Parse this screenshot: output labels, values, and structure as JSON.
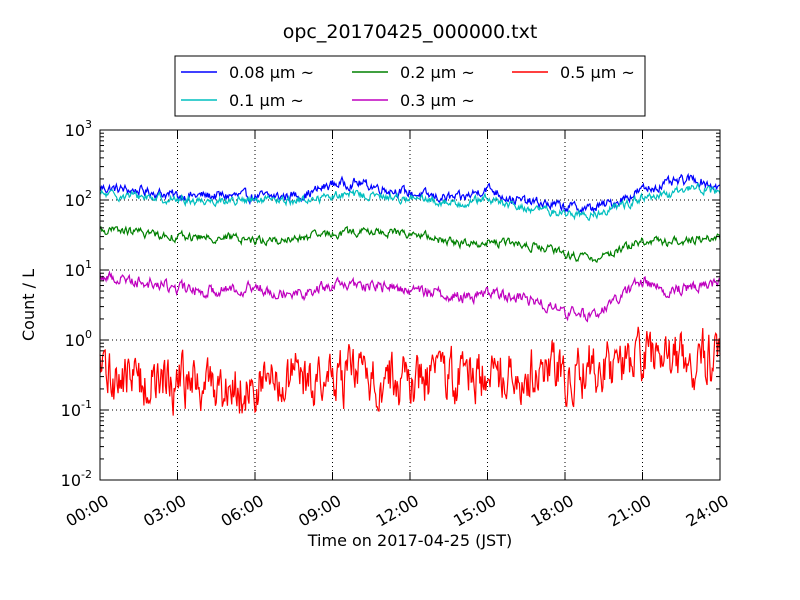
{
  "chart_data": {
    "type": "line",
    "title": "opc_20170425_000000.txt",
    "xlabel": "Time on 2017-04-25 (JST)",
    "ylabel": "Count / L",
    "x_ticks": [
      "00:00",
      "03:00",
      "06:00",
      "09:00",
      "12:00",
      "15:00",
      "18:00",
      "21:00",
      "24:00"
    ],
    "xlim_hours": [
      0,
      24
    ],
    "y_scale": "log",
    "ylim": [
      0.01,
      1000
    ],
    "y_ticks": [
      {
        "base": "10",
        "exp": "-2"
      },
      {
        "base": "10",
        "exp": "-1"
      },
      {
        "base": "10",
        "exp": "0"
      },
      {
        "base": "10",
        "exp": "1"
      },
      {
        "base": "10",
        "exp": "2"
      },
      {
        "base": "10",
        "exp": "3"
      }
    ],
    "grid": true,
    "legend_position": "top",
    "series": [
      {
        "name": "0.08 μm ~",
        "color": "#0000ff",
        "x": [
          0,
          1,
          2,
          3,
          4,
          5,
          6,
          7,
          8,
          9,
          10,
          11,
          12,
          13,
          14,
          15,
          16,
          17,
          18,
          19,
          20,
          21,
          22,
          23,
          24
        ],
        "y": [
          150,
          140,
          130,
          115,
          115,
          115,
          112,
          112,
          120,
          170,
          175,
          145,
          125,
          110,
          105,
          150,
          100,
          90,
          80,
          75,
          95,
          140,
          170,
          200,
          150
        ]
      },
      {
        "name": "0.1 μm ~",
        "color": "#00bfbf",
        "x": [
          0,
          1,
          2,
          3,
          4,
          5,
          6,
          7,
          8,
          9,
          10,
          11,
          12,
          13,
          14,
          15,
          16,
          17,
          18,
          19,
          20,
          21,
          22,
          23,
          24
        ],
        "y": [
          120,
          115,
          110,
          100,
          98,
          98,
          97,
          97,
          100,
          115,
          120,
          110,
          105,
          95,
          90,
          105,
          80,
          72,
          65,
          60,
          80,
          105,
          115,
          160,
          120
        ]
      },
      {
        "name": "0.2 μm ~",
        "color": "#008000",
        "x": [
          0,
          1,
          2,
          3,
          4,
          5,
          6,
          7,
          8,
          9,
          10,
          11,
          12,
          13,
          14,
          15,
          16,
          17,
          18,
          19,
          20,
          21,
          22,
          23,
          24
        ],
        "y": [
          37,
          36,
          33,
          30,
          29,
          29,
          27,
          26,
          29,
          33,
          35,
          35,
          33,
          28,
          24,
          25,
          24,
          21,
          17,
          14,
          19,
          26,
          25,
          28,
          28
        ]
      },
      {
        "name": "0.3 μm ~",
        "color": "#bf00bf",
        "x": [
          0,
          1,
          2,
          3,
          4,
          5,
          6,
          7,
          8,
          9,
          10,
          11,
          12,
          13,
          14,
          15,
          16,
          17,
          18,
          19,
          20,
          21,
          22,
          23,
          24
        ],
        "y": [
          8,
          7.5,
          6.5,
          5.5,
          5,
          5.5,
          5.5,
          5,
          4.8,
          6,
          6,
          5.8,
          5.2,
          4.8,
          4,
          4.8,
          4.2,
          3.5,
          2.5,
          2.2,
          3.8,
          7,
          5,
          6,
          7
        ]
      },
      {
        "name": "0.5 μm ~",
        "color": "#ff0000",
        "x": [
          0,
          1,
          2,
          3,
          4,
          5,
          6,
          7,
          8,
          9,
          10,
          11,
          12,
          13,
          14,
          15,
          16,
          17,
          18,
          19,
          20,
          21,
          22,
          23,
          24
        ],
        "y": [
          0.3,
          0.3,
          0.25,
          0.25,
          0.22,
          0.22,
          0.22,
          0.25,
          0.25,
          0.28,
          0.3,
          0.28,
          0.28,
          0.28,
          0.32,
          0.35,
          0.35,
          0.35,
          0.35,
          0.4,
          0.42,
          0.5,
          0.55,
          0.55,
          0.55
        ]
      }
    ]
  }
}
